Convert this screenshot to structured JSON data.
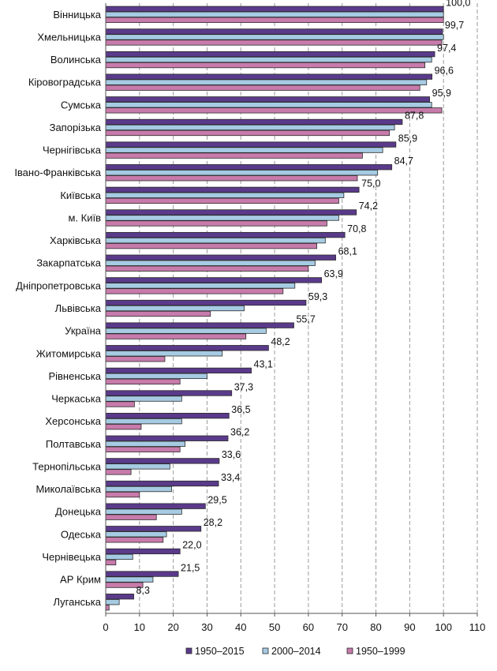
{
  "chart_data": {
    "type": "bar",
    "orientation": "horizontal",
    "categories": [
      "Вінницька",
      "Хмельницька",
      "Волинська",
      "Кіровоградська",
      "Сумська",
      "Запорізька",
      "Чернігівська",
      "Івано-Франківська",
      "Київська",
      "м. Київ",
      "Харківська",
      "Закарпатська",
      "Дніпропетровська",
      "Львівська",
      "Україна",
      "Житомирська",
      "Рівненська",
      "Черкаська",
      "Херсонська",
      "Полтавська",
      "Тернопільська",
      "Миколаївська",
      "Донецька",
      "Одеська",
      "Чернівецька",
      "АР Крим",
      "Луганська"
    ],
    "series": [
      {
        "name": "1950–2015",
        "color": "#5a3a8a",
        "values": [
          100.0,
          99.7,
          97.4,
          96.6,
          95.9,
          87.8,
          85.9,
          84.7,
          75.0,
          74.2,
          70.8,
          68.1,
          63.9,
          59.3,
          55.7,
          48.2,
          43.1,
          37.3,
          36.5,
          36.2,
          33.6,
          33.4,
          29.5,
          28.2,
          22.0,
          21.5,
          8.3
        ]
      },
      {
        "name": "2000–2014",
        "color": "#a6cbe3",
        "values": [
          100,
          100,
          96.5,
          95,
          96.5,
          85.5,
          82,
          80.5,
          70.5,
          69,
          65,
          62,
          56,
          41,
          47.5,
          34.5,
          30,
          22.5,
          22.5,
          23.5,
          19,
          19.5,
          22.5,
          18,
          8,
          14,
          4
        ]
      },
      {
        "name": "1950–1999",
        "color": "#c77bab",
        "values": [
          100,
          99.5,
          94.5,
          93,
          99.5,
          84,
          76,
          74.5,
          69,
          65.5,
          62.5,
          60,
          52.5,
          31,
          41.5,
          17.5,
          22,
          8.5,
          10.5,
          22,
          7.5,
          10,
          15,
          17,
          3,
          11,
          1
        ]
      }
    ],
    "data_labels": [
      "100,0",
      "99,7",
      "97,4",
      "96,6",
      "95,9",
      "87,8",
      "85,9",
      "84,7",
      "75,0",
      "74,2",
      "70,8",
      "68,1",
      "63,9",
      "59,3",
      "55,7",
      "48,2",
      "43,1",
      "37,3",
      "36,5",
      "36,2",
      "33,6",
      "33,4",
      "29,5",
      "28,2",
      "22,0",
      "21,5",
      "8,3"
    ],
    "x_ticks": [
      "0",
      "10",
      "20",
      "30",
      "40",
      "50",
      "60",
      "70",
      "80",
      "90",
      "100",
      "110"
    ],
    "xlim": [
      0,
      110
    ],
    "grid": "vertical dashed",
    "legend_position": "bottom"
  }
}
